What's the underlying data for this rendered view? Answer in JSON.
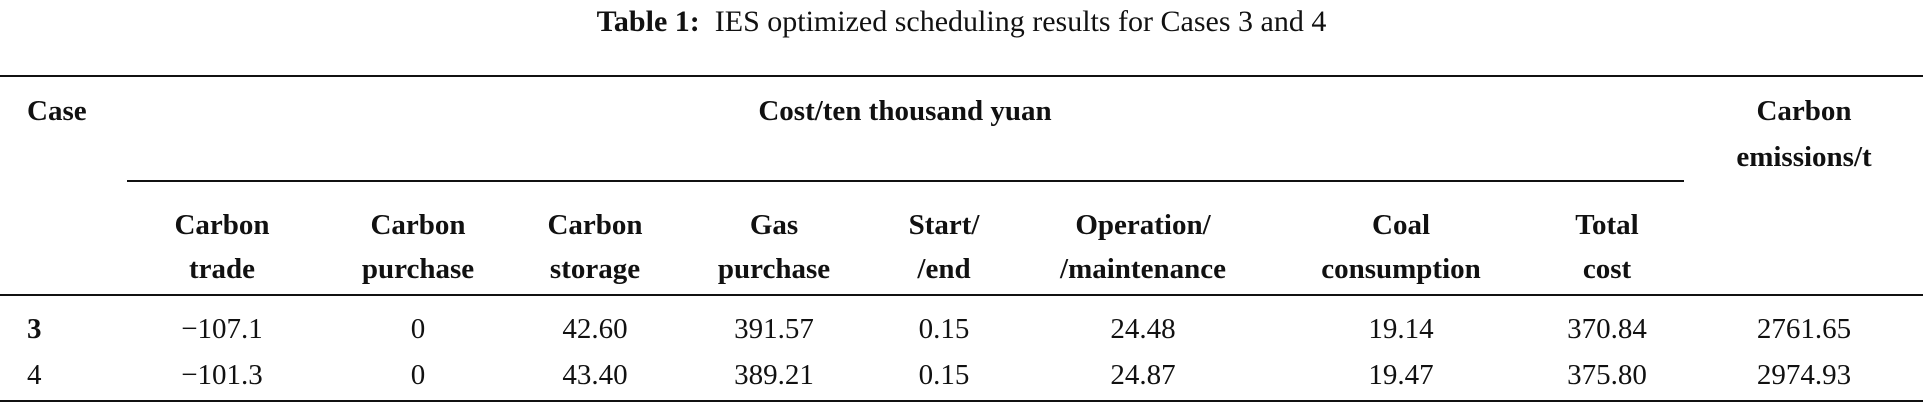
{
  "caption": {
    "label": "Table 1:",
    "text": "IES optimized scheduling results for Cases 3 and 4"
  },
  "headers": {
    "case": "Case",
    "cost_group": "Cost/ten thousand yuan",
    "emissions": [
      "Carbon",
      "emissions/t"
    ],
    "columns": [
      [
        "Carbon",
        "trade"
      ],
      [
        "Carbon",
        "purchase"
      ],
      [
        "Carbon",
        "storage"
      ],
      [
        "Gas",
        "purchase"
      ],
      [
        "Start/",
        "/end"
      ],
      [
        "Operation/",
        "/maintenance"
      ],
      [
        "Coal",
        "consumption"
      ],
      [
        "Total",
        "cost"
      ]
    ]
  },
  "rows": [
    {
      "case": "3",
      "values": [
        "−107.1",
        "0",
        "42.60",
        "391.57",
        "0.15",
        "24.48",
        "19.14",
        "370.84",
        "2761.65"
      ]
    },
    {
      "case": "4",
      "values": [
        "−101.3",
        "0",
        "43.40",
        "389.21",
        "0.15",
        "24.87",
        "19.47",
        "375.80",
        "2974.93"
      ]
    }
  ]
}
